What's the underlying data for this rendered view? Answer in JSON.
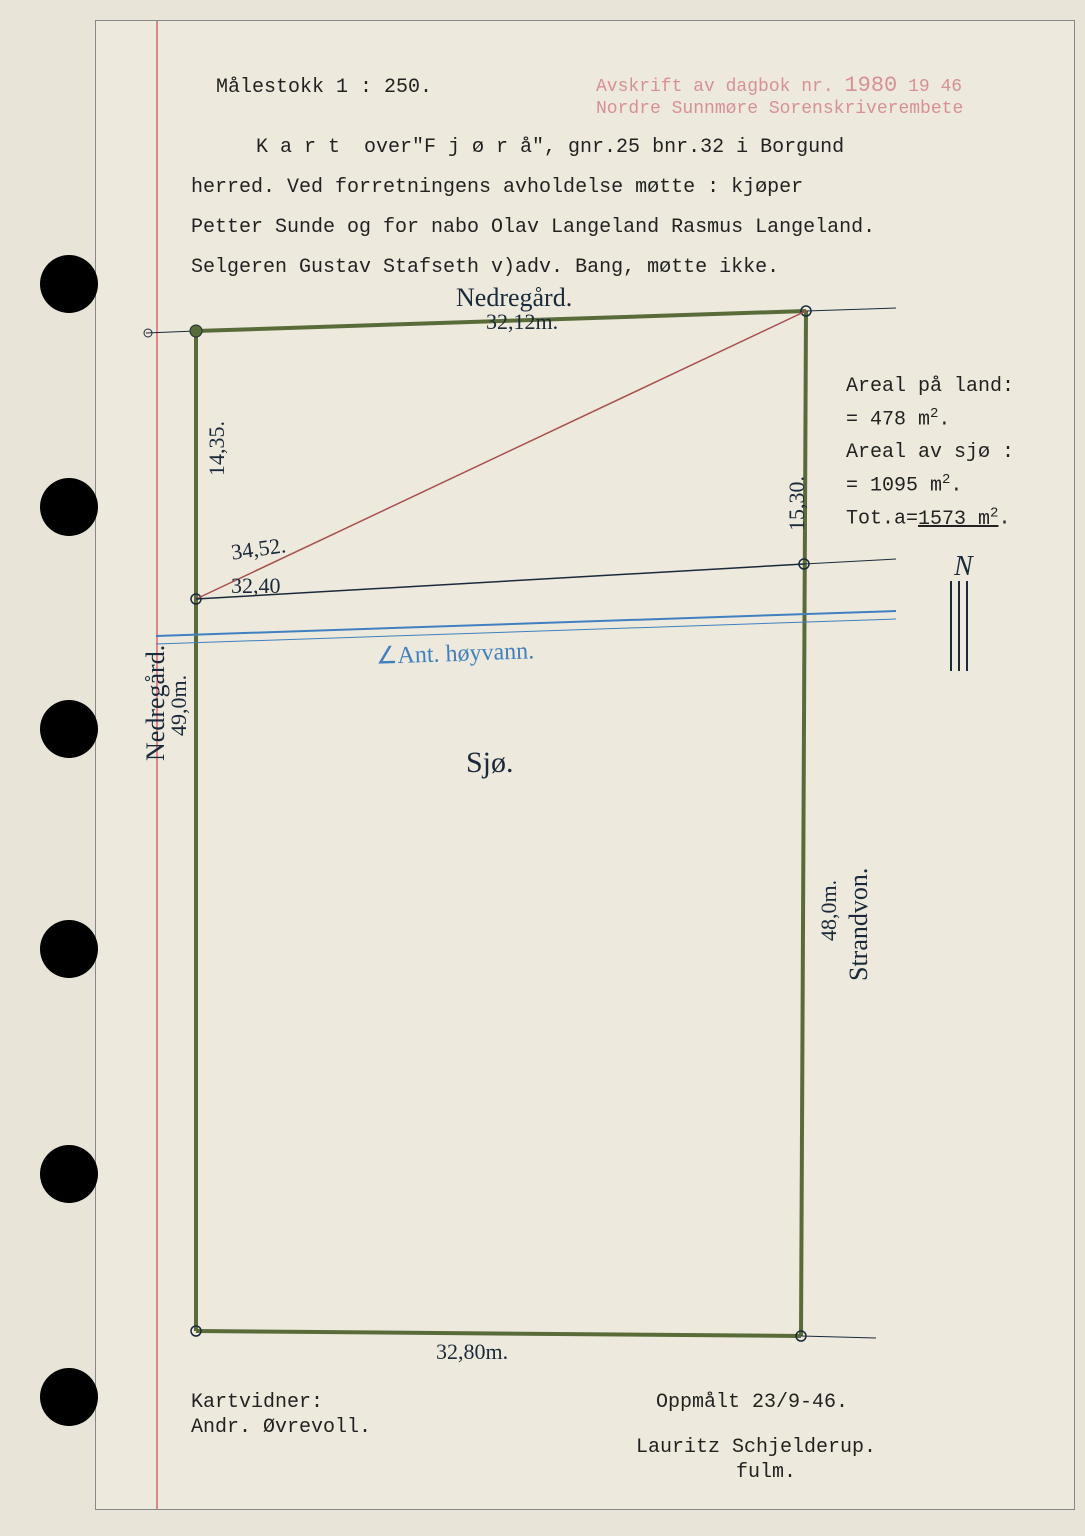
{
  "header": {
    "scale_label": "Målestokk 1 : 250.",
    "stamp_line1_prefix": "Avskrift av dagbok nr.",
    "stamp_number": "1980",
    "stamp_year_suffix": "19 46",
    "stamp_line2": "Nordre Sunnmøre Sorenskriverembete",
    "body_line1": "K a r t  over\"F j ø r å\", gnr.25 bnr.32 i Borgund",
    "body_line2": "herred. Ved forretningens avholdelse møtte : kjøper",
    "body_line3": "Petter Sunde og for nabo Olav Langeland Rasmus Langeland.",
    "body_line4": "Selgeren Gustav Stafseth v)adv. Bang, møtte ikke."
  },
  "areal": {
    "land_label": "Areal på land:",
    "land_value": "=   478 m",
    "sea_label": "Areal av sjø :",
    "sea_value": "= 1095 m",
    "total_label": "Tot.a=",
    "total_value": "1573 m",
    "north": "N"
  },
  "map": {
    "outline_color": "#5a6b3a",
    "outline_width": 4,
    "red_line_color": "#a85050",
    "blue_line_color": "#4080c0",
    "top_label": "Nedregård.",
    "top_measure": "32,12m.",
    "left_label": "Nedregård.",
    "left_measure": "49,0m.",
    "left_upper_measure": "14,35.",
    "diag_measure": "34,52.",
    "mid_left_measure": "32,40",
    "water_label": "∠Ant. høyvann.",
    "sea_label": "Sjø.",
    "right_upper_measure": "15,30.",
    "right_label": "Strandvon.",
    "right_measure": "48,0m.",
    "bottom_measure": "32,80m."
  },
  "footer": {
    "witness_label": "Kartvidner:",
    "witness_name": "Andr. Øvrevoll.",
    "date_label": "Oppmålt 23/9-46.",
    "surveyor": "Lauritz Schjelderup.",
    "role": "fulm."
  },
  "holes": [
    255,
    478,
    700,
    920,
    1145,
    1368
  ],
  "colors": {
    "page_bg": "#ede9dc",
    "body_bg": "#e8e4d8",
    "text": "#222222",
    "stamp": "#d89098",
    "hand": "#1a2a3a"
  }
}
